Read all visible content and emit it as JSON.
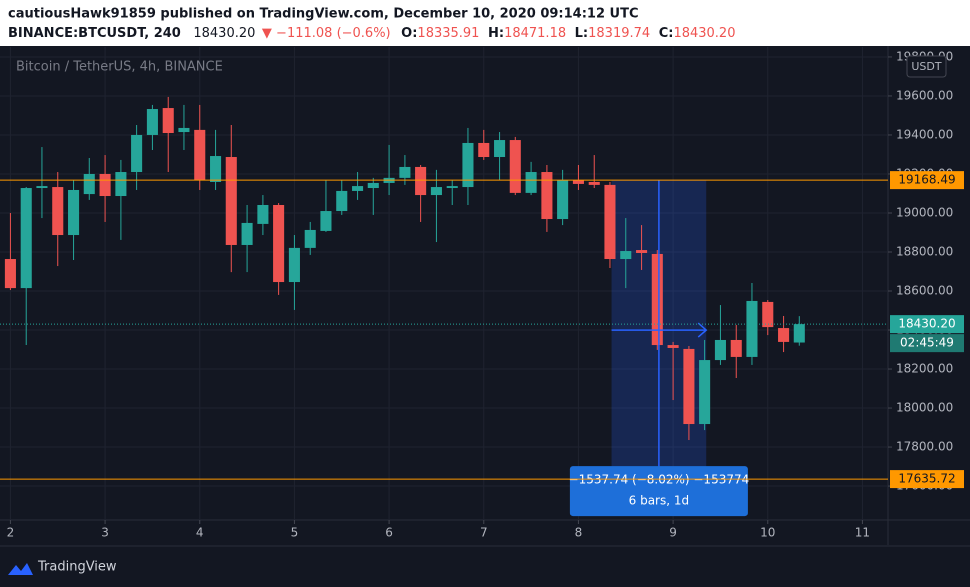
{
  "header": {
    "line1": "cautiousHawk91859 published on TradingView.com, December 10, 2020 09:14:12 UTC",
    "symbol": "BINANCE:BTCUSDT, 240",
    "price": "18430.20",
    "change": "▼ −111.08 (−0.6%)",
    "ohlc": [
      {
        "label": "O:",
        "value": "18335.91"
      },
      {
        "label": "H:",
        "value": "18471.18"
      },
      {
        "label": "L:",
        "value": "18319.74"
      },
      {
        "label": "C:",
        "value": "18430.20"
      }
    ]
  },
  "footer": {
    "brand": "TradingView"
  },
  "chart_data": {
    "type": "candlestick",
    "title": "Bitcoin / TetherUS, 4h, BINANCE",
    "currency": "USDT",
    "up_color": "#26a69a",
    "down_color": "#ef5350",
    "grid": true,
    "x": [
      2,
      2.167,
      2.333,
      2.5,
      2.667,
      2.833,
      3,
      3.167,
      3.333,
      3.5,
      3.667,
      3.833,
      4,
      4.167,
      4.333,
      4.5,
      4.667,
      4.833,
      5,
      5.167,
      5.333,
      5.5,
      5.667,
      5.833,
      6,
      6.167,
      6.333,
      6.5,
      6.667,
      6.833,
      7,
      7.167,
      7.333,
      7.5,
      7.667,
      7.833,
      8,
      8.167,
      8.333,
      8.5,
      8.667,
      8.833,
      9,
      9.167,
      9.333,
      9.5,
      9.667,
      9.833,
      10,
      10.167,
      10.333
    ],
    "open": [
      18764,
      18615,
      19128,
      19133,
      18887,
      19097,
      19200,
      19087,
      19210,
      19400,
      19538,
      19415,
      19426,
      19159,
      19287,
      18836,
      18944,
      19041,
      18646,
      18821,
      18908,
      19010,
      19113,
      19128,
      19154,
      19180,
      19236,
      19092,
      19128,
      19133,
      19359,
      19287,
      19374,
      19103,
      19210,
      18969,
      19169,
      19159,
      19144,
      18764,
      18810,
      18790,
      18323,
      18303,
      17918,
      18246,
      18349,
      18262,
      18544,
      18410,
      18335.91
    ],
    "high": [
      19000,
      19133,
      19338,
      19210,
      19169,
      19282,
      19297,
      19272,
      19451,
      19554,
      19595,
      19554,
      19554,
      19426,
      19451,
      19041,
      19092,
      19051,
      18887,
      18954,
      19169,
      19169,
      19210,
      19180,
      19349,
      19297,
      19246,
      19221,
      19169,
      19436,
      19426,
      19415,
      19390,
      19262,
      19246,
      19221,
      19246,
      19297,
      19159,
      18974,
      18938,
      18810,
      18339,
      18318,
      18349,
      18528,
      18426,
      18641,
      18554,
      18472,
      18471.18
    ],
    "low": [
      18605,
      18323,
      18974,
      18728,
      18759,
      19067,
      18954,
      18862,
      19118,
      19323,
      19210,
      19323,
      19118,
      19118,
      18697,
      18697,
      18887,
      18580,
      18503,
      18785,
      18903,
      18990,
      19067,
      18990,
      19092,
      19144,
      18954,
      18851,
      19041,
      19041,
      19272,
      19169,
      19092,
      19092,
      18903,
      18938,
      19118,
      19128,
      18718,
      18615,
      18708,
      18298,
      18041,
      17836,
      17887,
      18221,
      18154,
      18221,
      18374,
      18287,
      18319.74
    ],
    "close": [
      18615,
      19128,
      19138,
      18887,
      19118,
      19200,
      19087,
      19210,
      19400,
      19533,
      19410,
      19436,
      19169,
      19292,
      18836,
      18949,
      19041,
      18646,
      18821,
      18913,
      19010,
      19113,
      19138,
      19154,
      19180,
      19236,
      19092,
      19133,
      19138,
      19359,
      19287,
      19374,
      19103,
      19210,
      18969,
      19169,
      19149,
      19144,
      18764,
      18805,
      18795,
      18323,
      18308,
      17918,
      18246,
      18349,
      18262,
      18549,
      18415,
      18339,
      18430.2
    ],
    "xlim": [
      1.89,
      11.27
    ],
    "xticks": [
      2,
      3,
      4,
      5,
      6,
      7,
      8,
      9,
      10,
      11
    ],
    "ylim": [
      17426,
      19851
    ],
    "yticks": [
      {
        "value": 17600,
        "label": "17600.00"
      },
      {
        "value": 17800,
        "label": "17800.00"
      },
      {
        "value": 18000,
        "label": "18000.00"
      },
      {
        "value": 18200,
        "label": "18200.00"
      },
      {
        "value": 18400,
        "label": "18400.00"
      },
      {
        "value": 18600,
        "label": "18600.00"
      },
      {
        "value": 18800,
        "label": "18800.00"
      },
      {
        "value": 19000,
        "label": "19000.00"
      },
      {
        "value": 19200,
        "label": "19200.00"
      },
      {
        "value": 19400,
        "label": "19400.00"
      },
      {
        "value": 19600,
        "label": "19600.00"
      },
      {
        "value": 19800,
        "label": "19800.00"
      }
    ],
    "levels": [
      {
        "value": 19168.49,
        "color": "#ff9800"
      },
      {
        "value": 17635.72,
        "color": "#ff9800"
      }
    ],
    "last_price": {
      "value": 18430.2,
      "label": "18430.20",
      "countdown": "02:45:49"
    },
    "measure": {
      "xlim": [
        8.35,
        9.35
      ],
      "ylim": [
        19168.49,
        17630.75
      ],
      "label": "−1537.74 (−8.02%) −153774",
      "sublabel": "6 bars, 1d"
    }
  }
}
